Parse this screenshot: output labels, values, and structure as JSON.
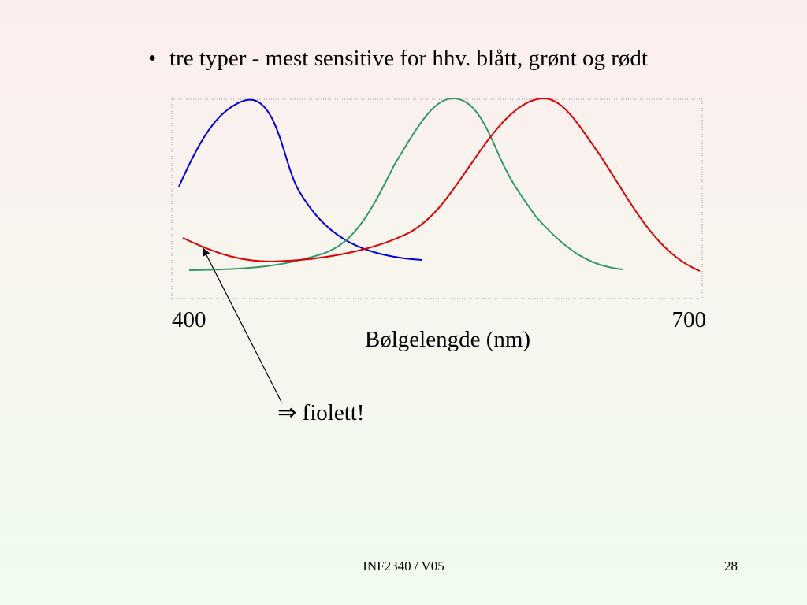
{
  "bullet": "tre typer - mest sensitive for hhv. blått, grønt og rødt",
  "axis": {
    "min_label": "400",
    "max_label": "700",
    "title": "Bølgelengde (nm)"
  },
  "annotation": "⇒ fiolett!",
  "footer": {
    "center": "INF2340 / V05",
    "page": "28"
  }
}
